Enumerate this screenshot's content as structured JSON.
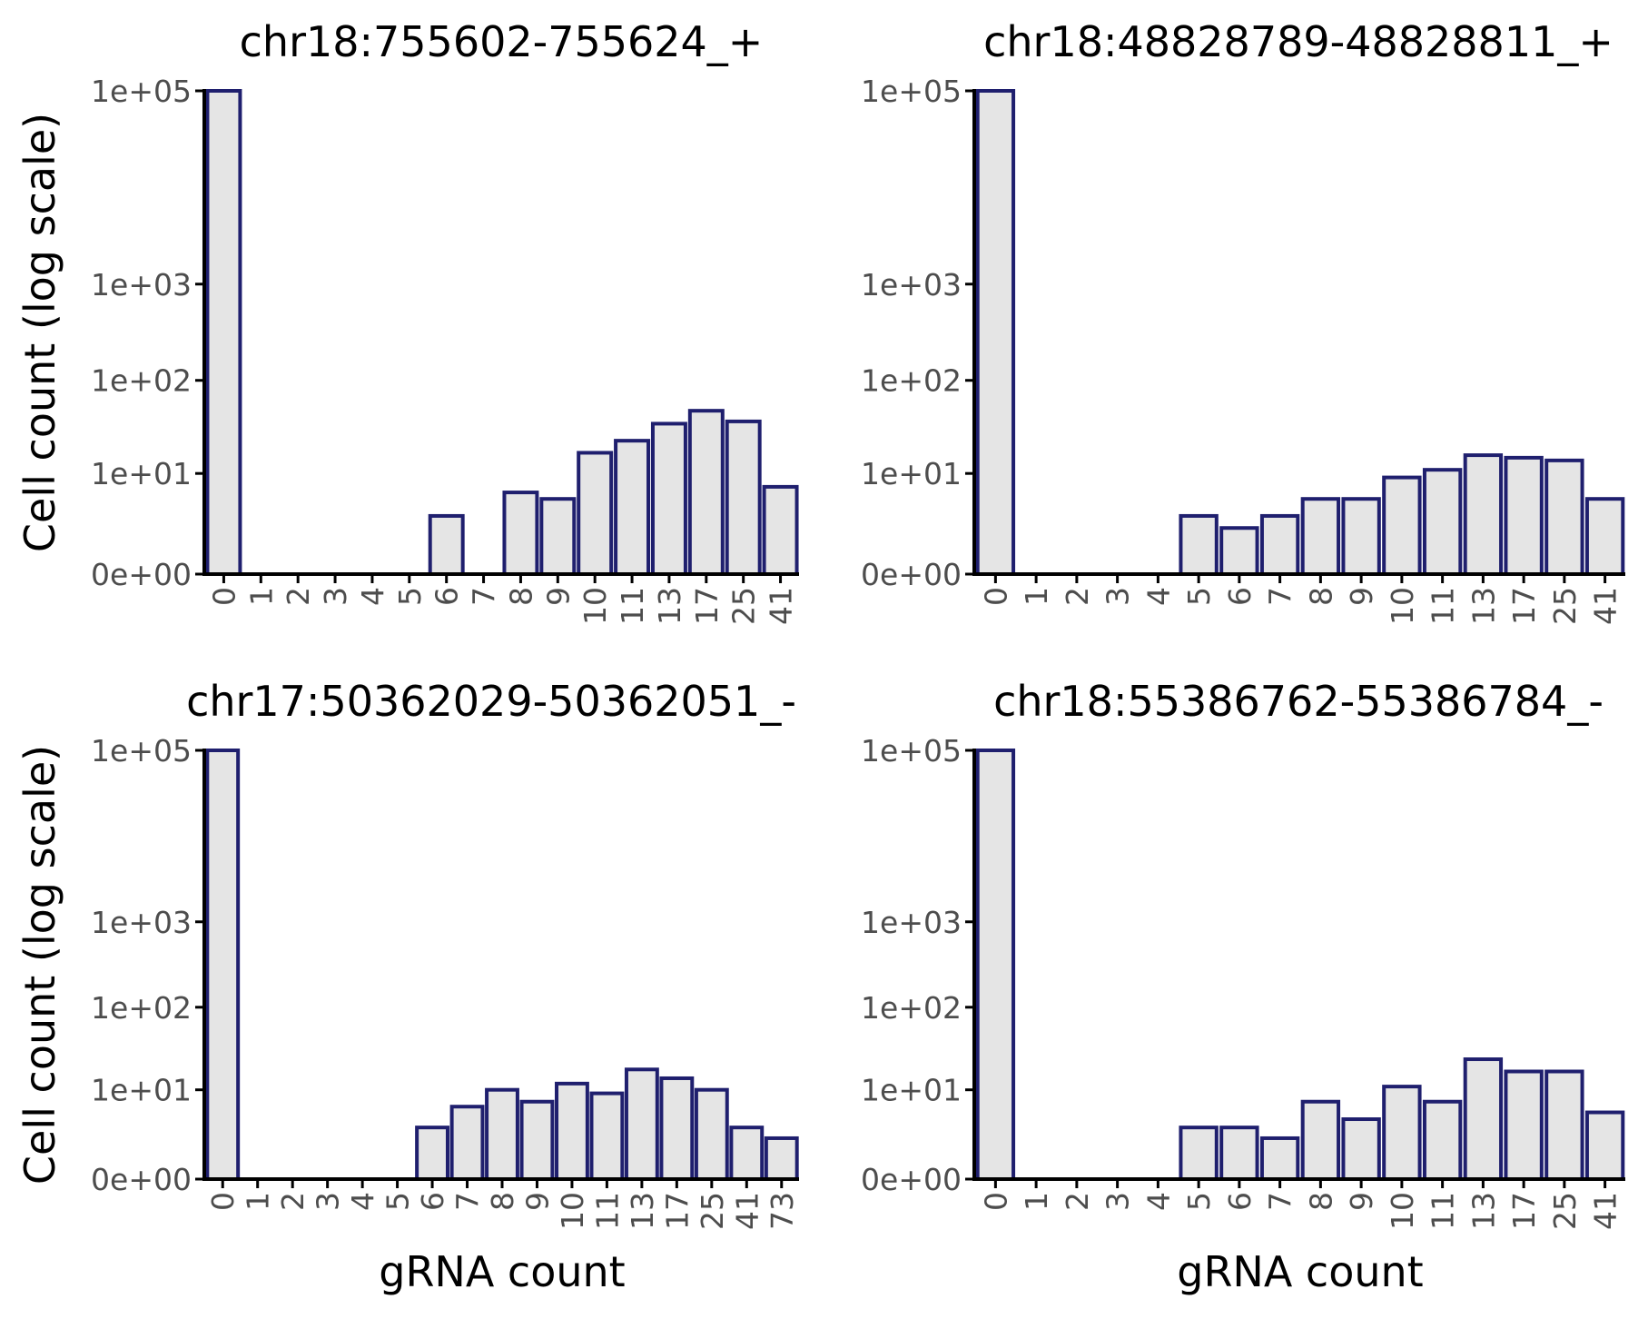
{
  "colors": {
    "bar_fill": "#e5e5e5",
    "bar_stroke": "#1f1f6e",
    "tick_text": "#4d4d4d"
  },
  "y_axis_title": "Cell count (log scale)",
  "x_axis_title": "gRNA count",
  "chart_data": [
    {
      "type": "bar",
      "title": "chr18:755602-755624_+",
      "xlabel": "",
      "ylabel": "Cell count (log scale)",
      "yscale": "log1p",
      "yticks": [
        "1e+05",
        "1e+03",
        "1e+02",
        "1e+01",
        "0e+00"
      ],
      "ytick_values": [
        100000,
        1000,
        100,
        10,
        0
      ],
      "categories": [
        "0",
        "1",
        "2",
        "3",
        "4",
        "5",
        "6",
        "7",
        "8",
        "9",
        "10",
        "11",
        "13",
        "17",
        "25",
        "41"
      ],
      "values": [
        100000,
        0,
        0,
        0,
        0,
        0,
        3,
        0,
        6,
        5,
        17,
        23,
        35,
        48,
        37,
        7
      ]
    },
    {
      "type": "bar",
      "title": "chr18:48828789-48828811_+",
      "xlabel": "",
      "ylabel": "",
      "yscale": "log1p",
      "yticks": [
        "1e+05",
        "1e+03",
        "1e+02",
        "1e+01",
        "0e+00"
      ],
      "ytick_values": [
        100000,
        1000,
        100,
        10,
        0
      ],
      "categories": [
        "0",
        "1",
        "2",
        "3",
        "4",
        "5",
        "6",
        "7",
        "8",
        "9",
        "10",
        "11",
        "13",
        "17",
        "25",
        "41"
      ],
      "values": [
        100000,
        0,
        0,
        0,
        0,
        3,
        2,
        3,
        5,
        5,
        9,
        11,
        16,
        15,
        14,
        5
      ]
    },
    {
      "type": "bar",
      "title": "chr17:50362029-50362051_-",
      "xlabel": "gRNA count",
      "ylabel": "Cell count (log scale)",
      "yscale": "log1p",
      "yticks": [
        "1e+05",
        "1e+03",
        "1e+02",
        "1e+01",
        "0e+00"
      ],
      "ytick_values": [
        100000,
        1000,
        100,
        10,
        0
      ],
      "categories": [
        "0",
        "1",
        "2",
        "3",
        "4",
        "5",
        "6",
        "7",
        "8",
        "9",
        "10",
        "11",
        "13",
        "17",
        "25",
        "41",
        "73"
      ],
      "values": [
        100000,
        0,
        0,
        0,
        0,
        0,
        3,
        6,
        10,
        7,
        12,
        9,
        18,
        14,
        10,
        3,
        2
      ]
    },
    {
      "type": "bar",
      "title": "chr18:55386762-55386784_-",
      "xlabel": "gRNA count",
      "ylabel": "",
      "yscale": "log1p",
      "yticks": [
        "1e+05",
        "1e+03",
        "1e+02",
        "1e+01",
        "0e+00"
      ],
      "ytick_values": [
        100000,
        1000,
        100,
        10,
        0
      ],
      "categories": [
        "0",
        "1",
        "2",
        "3",
        "4",
        "5",
        "6",
        "7",
        "8",
        "9",
        "10",
        "11",
        "13",
        "17",
        "25",
        "41"
      ],
      "values": [
        100000,
        0,
        0,
        0,
        0,
        3,
        3,
        2,
        7,
        4,
        11,
        7,
        24,
        17,
        17,
        5
      ]
    }
  ]
}
